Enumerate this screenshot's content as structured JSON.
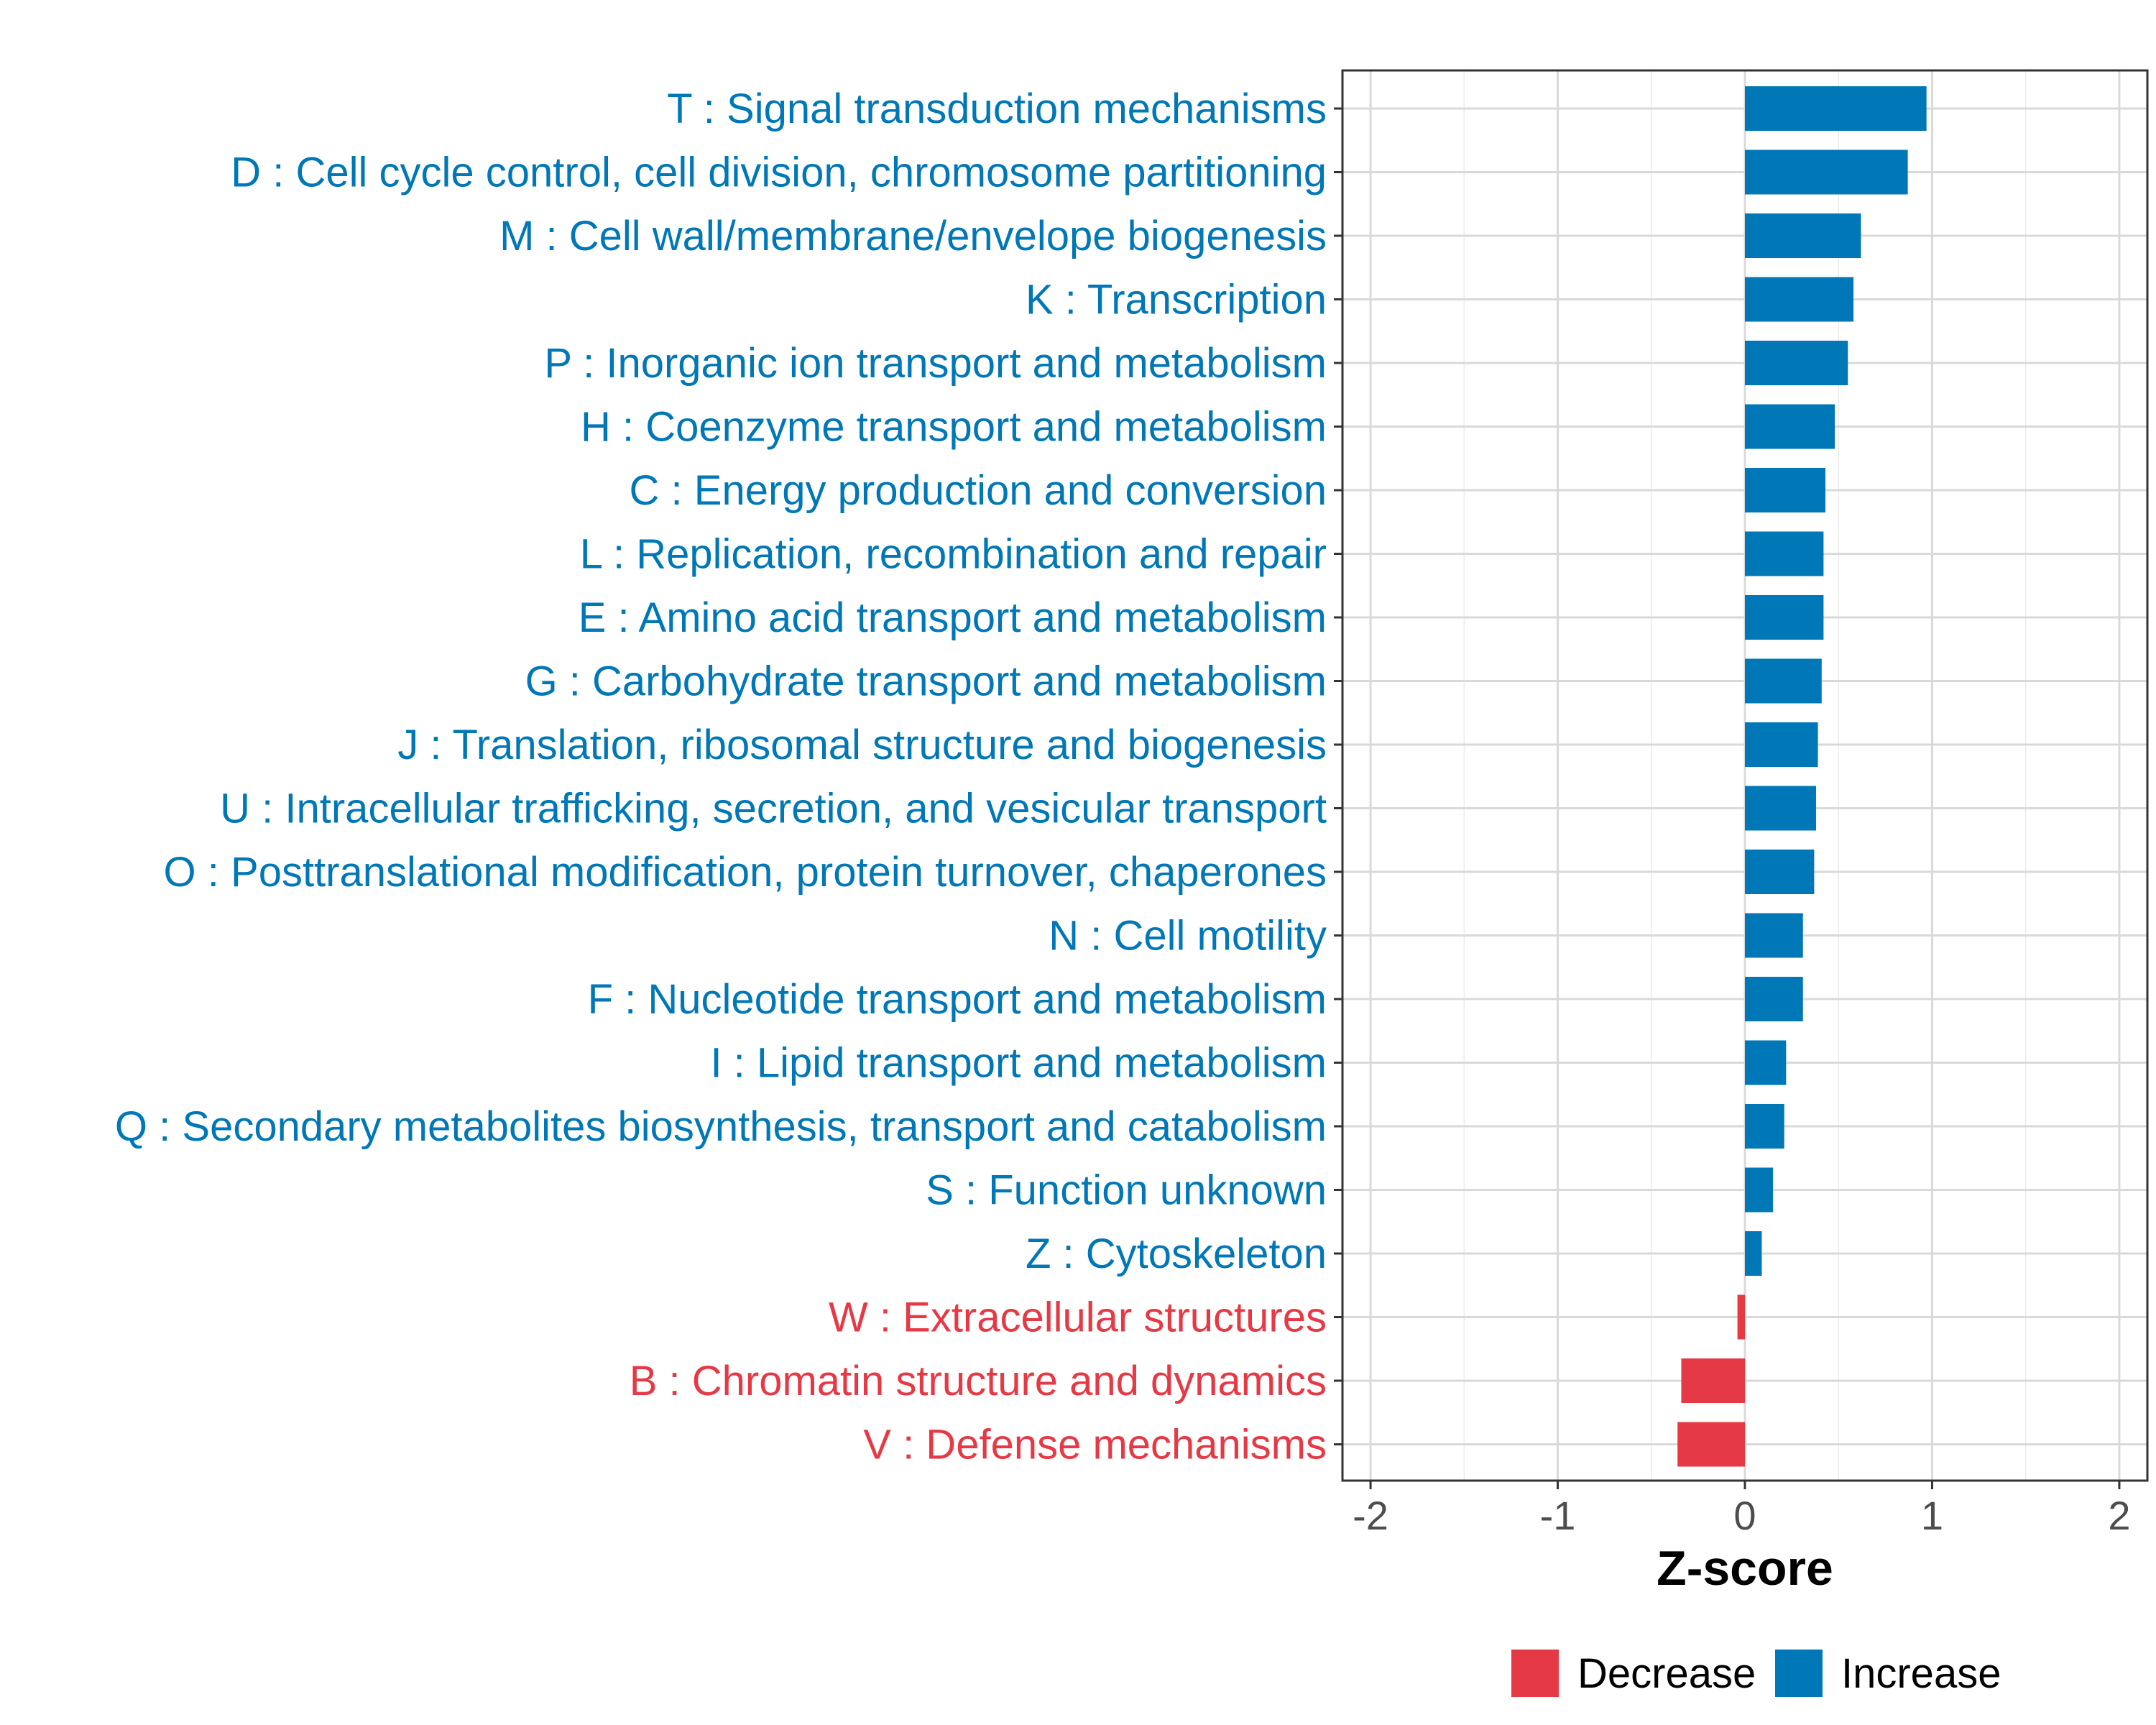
{
  "chart_data": {
    "type": "bar",
    "orientation": "horizontal",
    "xlabel": "Z-score",
    "ylabel": "",
    "xlim": [
      -2.15,
      2.15
    ],
    "x_ticks": [
      -2,
      -1,
      0,
      1,
      2
    ],
    "x_tick_labels": [
      "-2",
      "-1",
      "0",
      "1",
      "2"
    ],
    "grid": true,
    "legend_position": "bottom",
    "colors": {
      "Decrease": "#e63946",
      "Increase": "#0077b6"
    },
    "legend": [
      {
        "name": "Decrease",
        "color": "#e63946"
      },
      {
        "name": "Increase",
        "color": "#0077b6"
      }
    ],
    "categories": [
      "T : Signal transduction mechanisms",
      "D : Cell cycle control, cell division, chromosome partitioning",
      "M : Cell wall/membrane/envelope biogenesis",
      "K : Transcription",
      "P : Inorganic ion transport and metabolism",
      "H : Coenzyme transport and metabolism",
      "C : Energy production and conversion",
      "L : Replication, recombination and repair",
      "E : Amino acid transport and metabolism",
      "G : Carbohydrate transport and metabolism",
      "J : Translation, ribosomal structure and biogenesis",
      "U : Intracellular trafficking, secretion, and vesicular transport",
      "O : Posttranslational modification, protein turnover, chaperones",
      "N : Cell motility",
      "F : Nucleotide transport and metabolism",
      "I : Lipid transport and metabolism",
      "Q : Secondary metabolites biosynthesis, transport and catabolism",
      "S : Function unknown",
      "Z : Cytoskeleton",
      "W : Extracellular structures",
      "B : Chromatin structure and dynamics",
      "V : Defense mechanisms"
    ],
    "values": [
      0.97,
      0.87,
      0.62,
      0.58,
      0.55,
      0.48,
      0.43,
      0.42,
      0.42,
      0.41,
      0.39,
      0.38,
      0.37,
      0.31,
      0.31,
      0.22,
      0.21,
      0.15,
      0.09,
      -0.04,
      -0.34,
      -0.36
    ],
    "groups": [
      "Increase",
      "Increase",
      "Increase",
      "Increase",
      "Increase",
      "Increase",
      "Increase",
      "Increase",
      "Increase",
      "Increase",
      "Increase",
      "Increase",
      "Increase",
      "Increase",
      "Increase",
      "Increase",
      "Increase",
      "Increase",
      "Increase",
      "Decrease",
      "Decrease",
      "Decrease"
    ]
  }
}
